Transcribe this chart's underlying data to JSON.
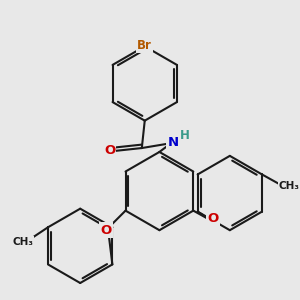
{
  "bg_color": "#e8e8e8",
  "bond_color": "#1a1a1a",
  "bond_width": 1.5,
  "atom_colors": {
    "Br": "#b35a00",
    "O": "#cc0000",
    "N": "#0000cc",
    "H": "#3a9a8a",
    "C": "#1a1a1a"
  }
}
